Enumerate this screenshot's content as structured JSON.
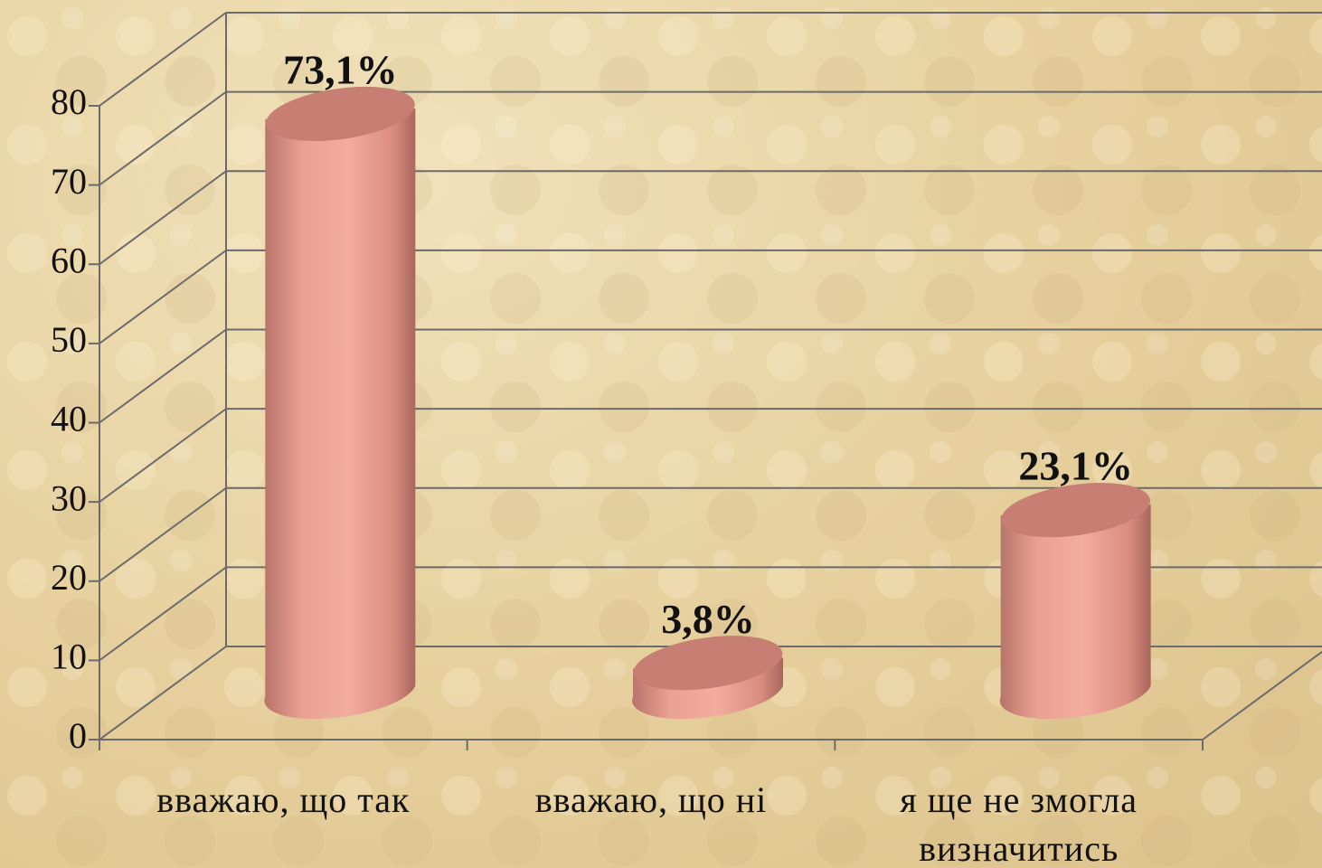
{
  "chart_data": {
    "type": "bar3d",
    "categories": [
      "вважаю, що так",
      "вважаю, що ні",
      "я ще не змогла визначитись"
    ],
    "values": [
      73.1,
      3.8,
      23.1
    ],
    "value_labels": [
      "73,1%",
      "3,8%",
      "23,1%"
    ],
    "color": "#e8998a",
    "ylim": [
      0,
      80
    ],
    "yticks": [
      0,
      10,
      20,
      30,
      40,
      50,
      60,
      70,
      80
    ],
    "grid": true
  }
}
